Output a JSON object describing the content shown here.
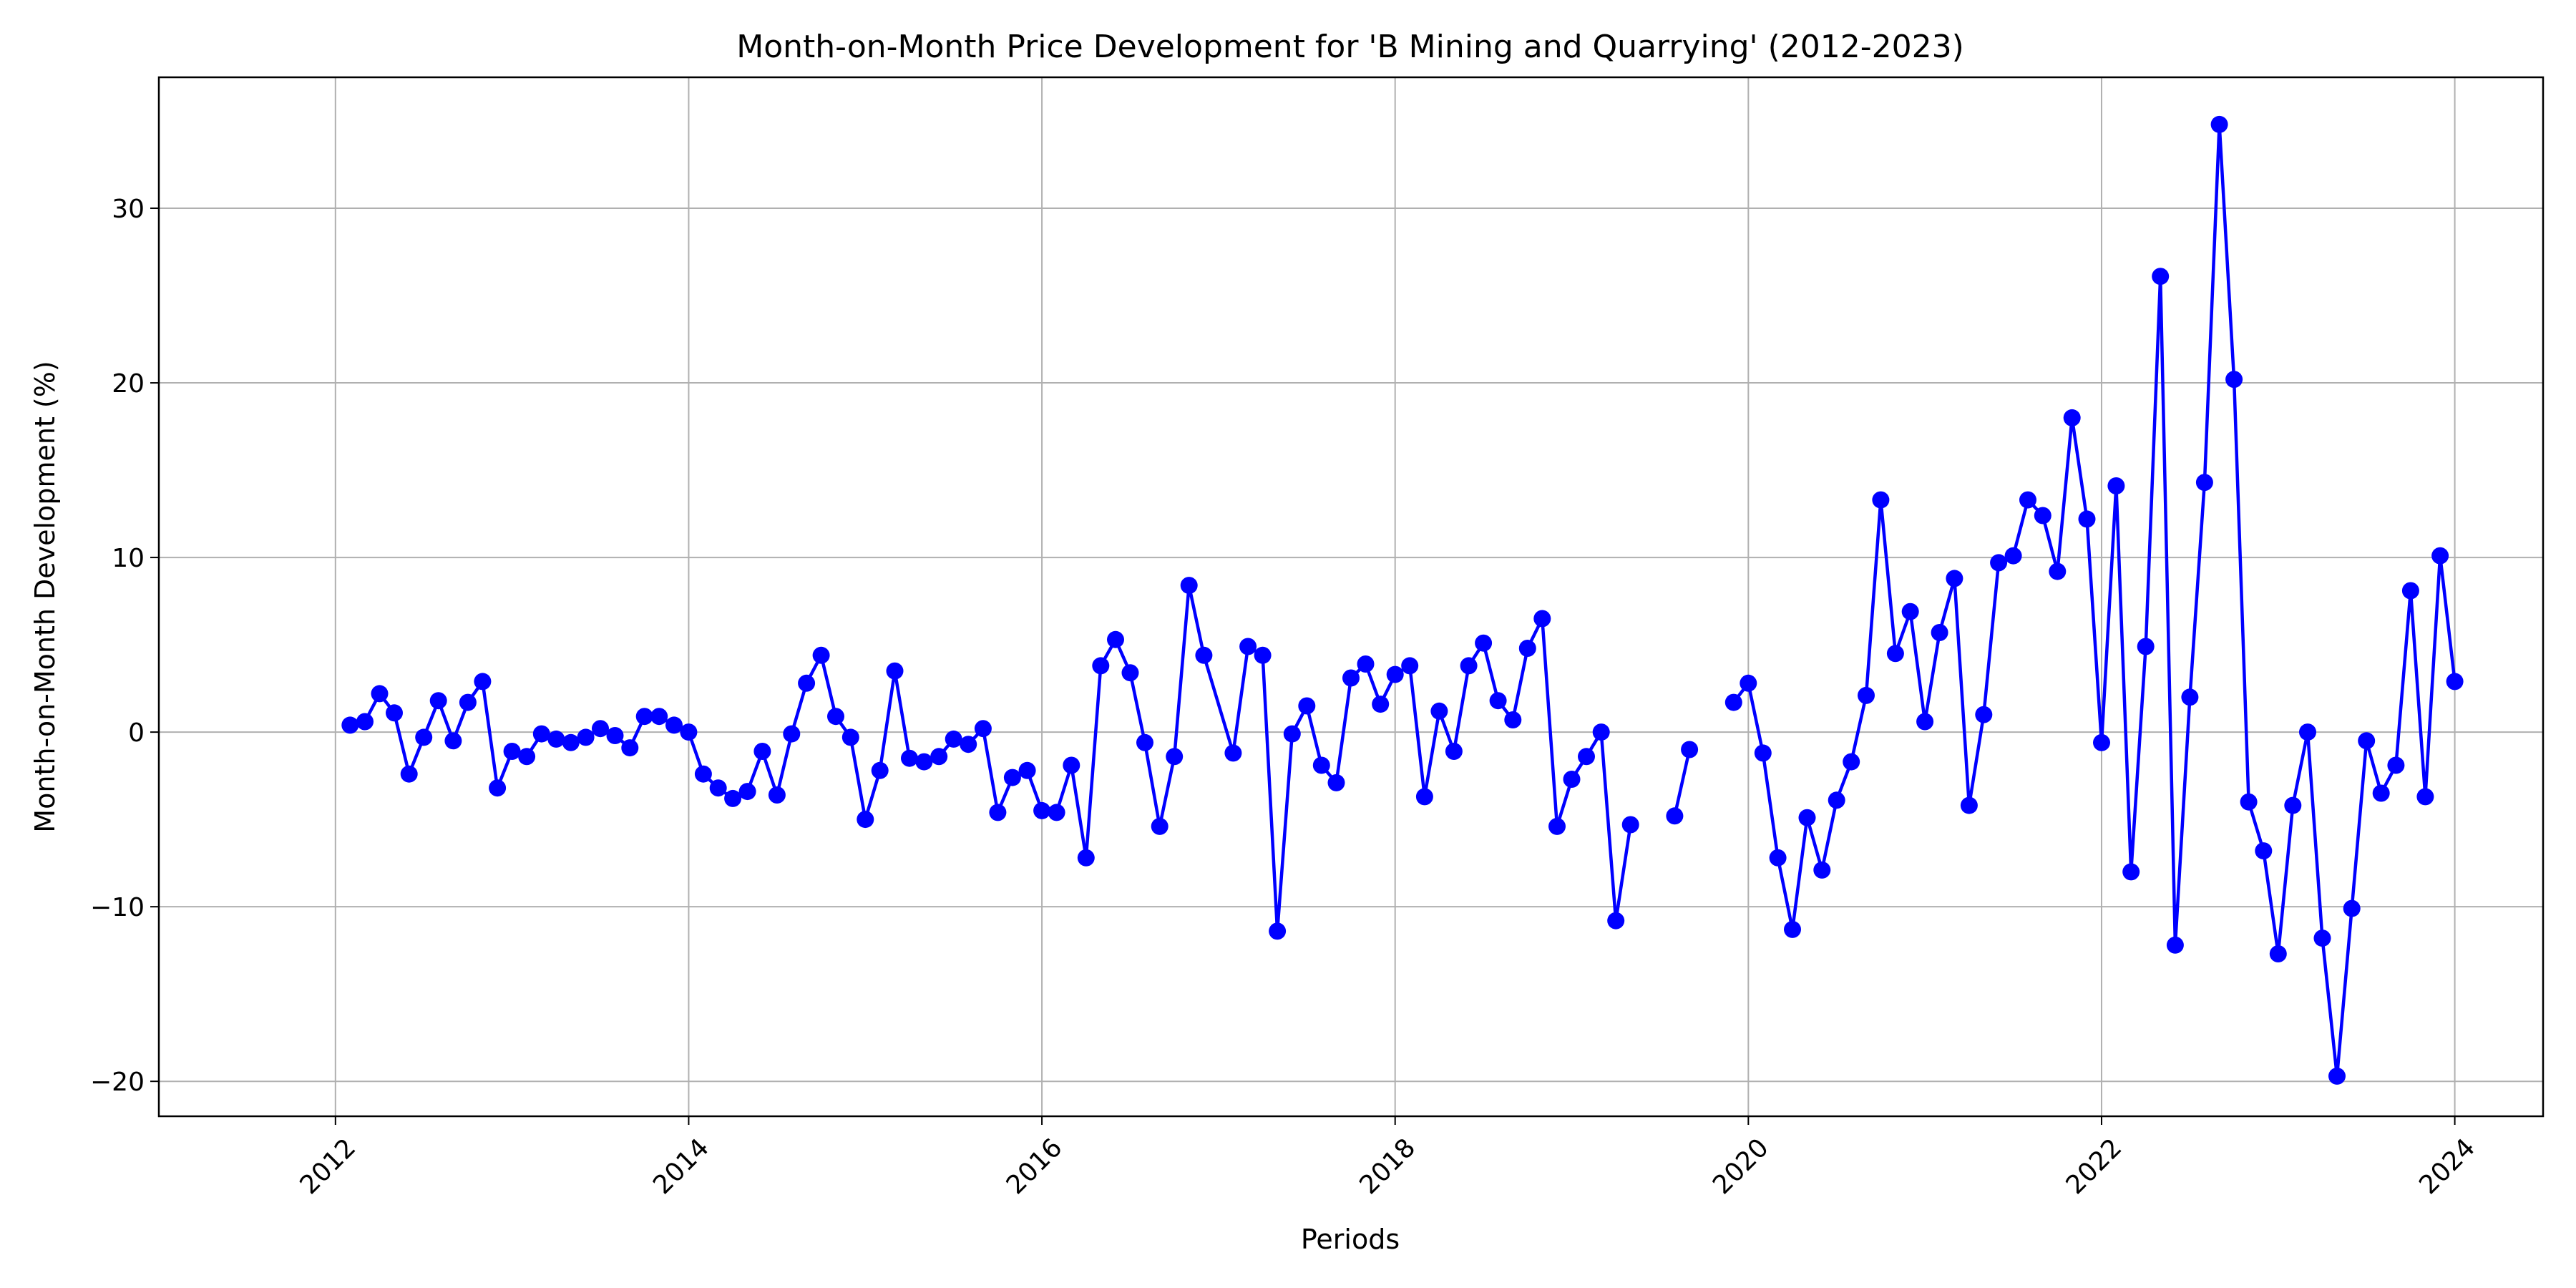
{
  "chart_data": {
    "type": "line",
    "title": "Month-on-Month Price Development for 'B Mining and Quarrying' (2012-2023)",
    "xlabel": "Periods",
    "ylabel": "Month-on-Month Development (%)",
    "x_ticks": [
      "2012",
      "2014",
      "2016",
      "2018",
      "2020",
      "2022",
      "2024"
    ],
    "y_ticks": [
      "−20",
      "−10",
      "0",
      "10",
      "20",
      "30"
    ],
    "xlim": [
      2011.0,
      2024.5
    ],
    "ylim": [
      -22.0,
      37.5
    ],
    "grid": true,
    "line_color": "#0000ff",
    "marker": "circle",
    "series": [
      {
        "points": [
          [
            2012.083,
            0.4
          ],
          [
            2012.167,
            0.6
          ],
          [
            2012.25,
            2.2
          ],
          [
            2012.333,
            1.1
          ],
          [
            2012.417,
            -2.4
          ],
          [
            2012.5,
            -0.3
          ],
          [
            2012.583,
            1.8
          ],
          [
            2012.667,
            -0.5
          ],
          [
            2012.75,
            1.7
          ],
          [
            2012.833,
            2.9
          ],
          [
            2012.917,
            -3.2
          ],
          [
            2013.0,
            -1.1
          ],
          [
            2013.083,
            -1.4
          ],
          [
            2013.167,
            -0.1
          ],
          [
            2013.25,
            -0.4
          ],
          [
            2013.333,
            -0.6
          ],
          [
            2013.417,
            -0.3
          ],
          [
            2013.5,
            0.2
          ],
          [
            2013.583,
            -0.2
          ],
          [
            2013.667,
            -0.9
          ],
          [
            2013.75,
            0.9
          ],
          [
            2013.833,
            0.9
          ],
          [
            2013.917,
            0.4
          ],
          [
            2014.0,
            0.0
          ],
          [
            2014.083,
            -2.4
          ],
          [
            2014.167,
            -3.2
          ],
          [
            2014.25,
            -3.8
          ],
          [
            2014.333,
            -3.4
          ],
          [
            2014.417,
            -1.1
          ],
          [
            2014.5,
            -3.6
          ],
          [
            2014.583,
            -0.1
          ],
          [
            2014.667,
            2.8
          ],
          [
            2014.75,
            4.4
          ],
          [
            2014.833,
            0.9
          ],
          [
            2014.917,
            -0.3
          ],
          [
            2015.0,
            -5.0
          ],
          [
            2015.083,
            -2.2
          ],
          [
            2015.167,
            3.5
          ],
          [
            2015.25,
            -1.5
          ],
          [
            2015.333,
            -1.7
          ],
          [
            2015.417,
            -1.4
          ],
          [
            2015.5,
            -0.4
          ],
          [
            2015.583,
            -0.7
          ],
          [
            2015.667,
            0.2
          ],
          [
            2015.75,
            -4.6
          ],
          [
            2015.833,
            -2.6
          ],
          [
            2015.917,
            -2.2
          ],
          [
            2016.0,
            -4.5
          ],
          [
            2016.083,
            -4.6
          ],
          [
            2016.167,
            -1.9
          ],
          [
            2016.25,
            -7.2
          ],
          [
            2016.333,
            3.8
          ],
          [
            2016.417,
            5.3
          ],
          [
            2016.5,
            3.4
          ],
          [
            2016.583,
            -0.6
          ],
          [
            2016.667,
            -5.4
          ],
          [
            2016.75,
            -1.4
          ],
          [
            2016.833,
            8.4
          ],
          [
            2016.917,
            4.4
          ],
          [
            2017.083,
            -1.2
          ],
          [
            2017.167,
            4.9
          ],
          [
            2017.25,
            4.4
          ],
          [
            2017.333,
            -11.4
          ],
          [
            2017.417,
            -0.1
          ],
          [
            2017.5,
            1.5
          ],
          [
            2017.583,
            -1.9
          ],
          [
            2017.667,
            -2.9
          ],
          [
            2017.75,
            3.1
          ],
          [
            2017.833,
            3.9
          ],
          [
            2017.917,
            1.6
          ],
          [
            2018.0,
            3.3
          ],
          [
            2018.083,
            3.8
          ],
          [
            2018.167,
            -3.7
          ],
          [
            2018.25,
            1.2
          ],
          [
            2018.333,
            -1.1
          ],
          [
            2018.417,
            3.8
          ],
          [
            2018.5,
            5.1
          ],
          [
            2018.583,
            1.8
          ],
          [
            2018.667,
            0.7
          ],
          [
            2018.75,
            4.8
          ],
          [
            2018.833,
            6.5
          ],
          [
            2018.917,
            -5.4
          ],
          [
            2019.0,
            -2.7
          ],
          [
            2019.083,
            -1.4
          ],
          [
            2019.167,
            0.0
          ],
          [
            2019.25,
            -10.8
          ],
          [
            2019.333,
            -5.3
          ],
          null,
          [
            2019.583,
            -4.8
          ],
          [
            2019.667,
            -1.0
          ],
          null,
          [
            2019.917,
            1.7
          ],
          [
            2020.0,
            2.8
          ],
          [
            2020.083,
            -1.2
          ],
          [
            2020.167,
            -7.2
          ],
          [
            2020.25,
            -11.3
          ],
          [
            2020.333,
            -4.9
          ],
          [
            2020.417,
            -7.9
          ],
          [
            2020.5,
            -3.9
          ],
          [
            2020.583,
            -1.7
          ],
          [
            2020.667,
            2.1
          ],
          [
            2020.75,
            13.3
          ],
          [
            2020.833,
            4.5
          ],
          [
            2020.917,
            6.9
          ],
          [
            2021.0,
            0.6
          ],
          [
            2021.083,
            5.7
          ],
          [
            2021.167,
            8.8
          ],
          [
            2021.25,
            -4.2
          ],
          [
            2021.333,
            1.0
          ],
          [
            2021.417,
            9.7
          ],
          [
            2021.5,
            10.1
          ],
          [
            2021.583,
            13.3
          ],
          [
            2021.667,
            12.4
          ],
          [
            2021.75,
            9.2
          ],
          [
            2021.833,
            18.0
          ],
          [
            2021.917,
            12.2
          ],
          [
            2022.0,
            -0.6
          ],
          [
            2022.083,
            14.1
          ],
          [
            2022.167,
            -8.0
          ],
          [
            2022.25,
            4.9
          ],
          [
            2022.333,
            26.1
          ],
          [
            2022.417,
            -12.2
          ],
          [
            2022.5,
            2.0
          ],
          [
            2022.583,
            14.3
          ],
          [
            2022.667,
            34.8
          ],
          [
            2022.75,
            20.2
          ],
          [
            2022.833,
            -4.0
          ],
          [
            2022.917,
            -6.8
          ],
          [
            2023.0,
            -12.7
          ],
          [
            2023.083,
            -4.2
          ],
          [
            2023.167,
            0.0
          ],
          [
            2023.25,
            -11.8
          ],
          [
            2023.333,
            -19.7
          ],
          [
            2023.417,
            -10.1
          ],
          [
            2023.5,
            -0.5
          ],
          [
            2023.583,
            -3.5
          ],
          [
            2023.667,
            -1.9
          ],
          [
            2023.75,
            8.1
          ],
          [
            2023.833,
            -3.7
          ],
          [
            2023.917,
            10.1
          ],
          [
            2024.0,
            2.9
          ]
        ]
      }
    ]
  }
}
